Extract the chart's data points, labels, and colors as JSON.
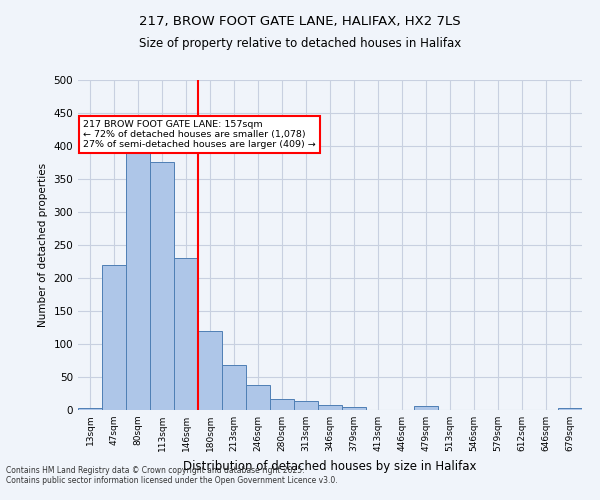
{
  "title1": "217, BROW FOOT GATE LANE, HALIFAX, HX2 7LS",
  "title2": "Size of property relative to detached houses in Halifax",
  "xlabel": "Distribution of detached houses by size in Halifax",
  "ylabel": "Number of detached properties",
  "categories": [
    "13sqm",
    "47sqm",
    "80sqm",
    "113sqm",
    "146sqm",
    "180sqm",
    "213sqm",
    "246sqm",
    "280sqm",
    "313sqm",
    "346sqm",
    "379sqm",
    "413sqm",
    "446sqm",
    "479sqm",
    "513sqm",
    "546sqm",
    "579sqm",
    "612sqm",
    "646sqm",
    "679sqm"
  ],
  "values": [
    3,
    220,
    403,
    375,
    230,
    120,
    68,
    38,
    17,
    13,
    7,
    5,
    0,
    0,
    6,
    0,
    0,
    0,
    0,
    0,
    3
  ],
  "bar_color": "#aec6e8",
  "bar_edge_color": "#4f7fb5",
  "vline_x": 4.5,
  "vline_color": "red",
  "annotation_text": "217 BROW FOOT GATE LANE: 157sqm\n← 72% of detached houses are smaller (1,078)\n27% of semi-detached houses are larger (409) →",
  "annotation_box_color": "white",
  "annotation_box_edge_color": "red",
  "ylim": [
    0,
    500
  ],
  "yticks": [
    0,
    50,
    100,
    150,
    200,
    250,
    300,
    350,
    400,
    450,
    500
  ],
  "footer": "Contains HM Land Registry data © Crown copyright and database right 2025.\nContains public sector information licensed under the Open Government Licence v3.0.",
  "background_color": "#f0f4fa",
  "grid_color": "#c8d0e0"
}
